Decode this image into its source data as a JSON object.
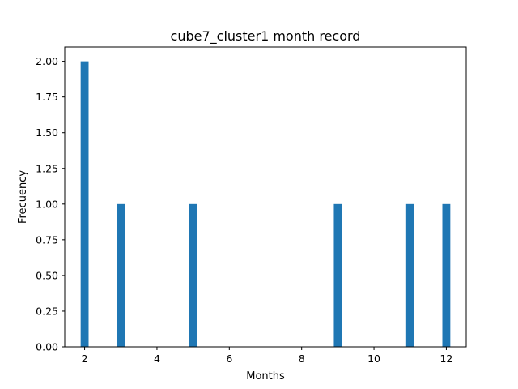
{
  "chart_data": {
    "type": "bar",
    "title": "cube7_cluster1 month record",
    "xlabel": "Months",
    "ylabel": "Frecuency",
    "x": [
      2,
      3,
      5,
      9,
      11,
      12
    ],
    "values": [
      2,
      1,
      1,
      1,
      1,
      1
    ],
    "xlim": [
      1.45,
      12.55
    ],
    "ylim": [
      0,
      2.1
    ],
    "xticks": [
      2,
      4,
      6,
      8,
      10,
      12
    ],
    "yticks": [
      0.0,
      0.25,
      0.5,
      0.75,
      1.0,
      1.25,
      1.5,
      1.75,
      2.0
    ],
    "ytick_labels": [
      "0.00",
      "0.25",
      "0.50",
      "0.75",
      "1.00",
      "1.25",
      "1.50",
      "1.75",
      "2.00"
    ],
    "bar_width": 0.22,
    "bar_color": "#1f77b4",
    "grid": false
  }
}
